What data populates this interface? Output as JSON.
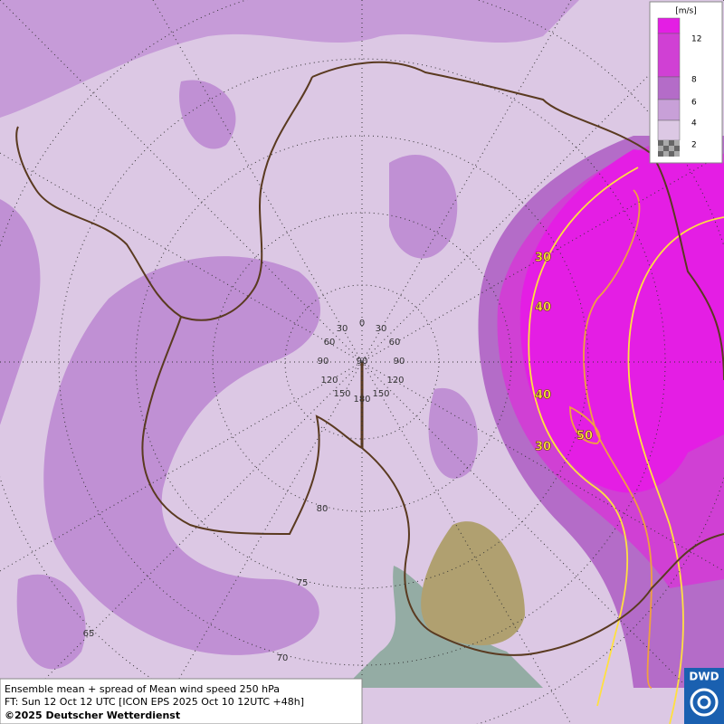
{
  "legend": {
    "unit": "[m/s]",
    "levels": [
      {
        "value": 12,
        "color": "#e41ee4"
      },
      {
        "value": 8,
        "color": "#d040d4"
      },
      {
        "value": 6,
        "color": "#b46cc8"
      },
      {
        "value": 4,
        "color": "#c8a0d8"
      },
      {
        "value": 2,
        "color": "#dcc8e4"
      }
    ]
  },
  "contour_labels": [
    30,
    40,
    40,
    30,
    50
  ],
  "graticule_labels": [
    0,
    30,
    30,
    60,
    60,
    90,
    90,
    90,
    120,
    120,
    150,
    150,
    180,
    80,
    75,
    70,
    65
  ],
  "footer": {
    "line1": "Ensemble mean + spread of Mean wind speed 250 hPa",
    "line2": "FT: Sun 12 Oct 12 UTC [ICON EPS 2025 Oct 10 12UTC +48h]",
    "line3": "©2025 Deutscher Wetterdienst"
  },
  "logo": "DWD"
}
